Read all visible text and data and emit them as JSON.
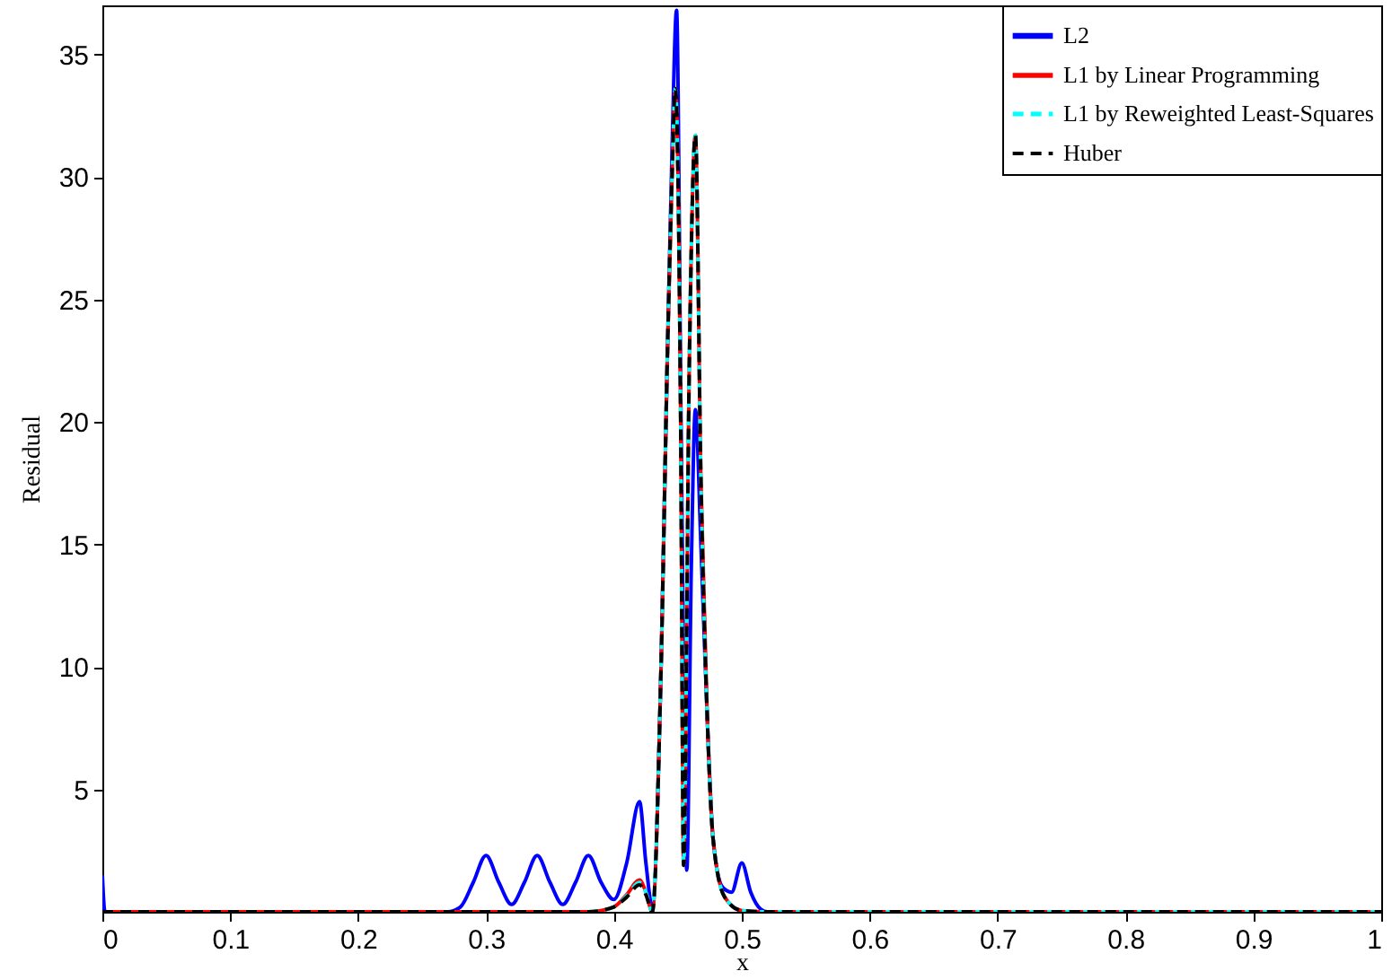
{
  "chart_data": {
    "type": "line",
    "xlabel": "x",
    "ylabel": "Residual",
    "xlim": [
      0,
      1
    ],
    "ylim": [
      0,
      37
    ],
    "xticks": [
      0,
      0.1,
      0.2,
      0.3,
      0.4,
      0.5,
      0.6,
      0.7,
      0.8,
      0.9,
      1
    ],
    "yticks": [
      5,
      10,
      15,
      20,
      25,
      30,
      35
    ],
    "grid": false,
    "legend": "top right",
    "marker": "none",
    "series": [
      {
        "name": "L2",
        "color": "#0000ff",
        "line_style": "solid",
        "x": [
          0,
          0.002,
          0.27,
          0.28,
          0.29,
          0.3,
          0.31,
          0.32,
          0.33,
          0.34,
          0.35,
          0.36,
          0.37,
          0.38,
          0.39,
          0.4,
          0.41,
          0.42,
          0.425,
          0.43,
          0.437,
          0.4417,
          0.4454,
          0.449,
          0.4525,
          0.457,
          0.4605,
          0.4637,
          0.468,
          0.473,
          0.4775,
          0.485,
          0.492,
          0.5,
          0.507,
          0.515,
          0.52,
          1
        ],
        "values": [
          1.5,
          0,
          0,
          0.2,
          1.2,
          2.3,
          1.2,
          0.3,
          1.2,
          2.3,
          1.2,
          0.3,
          1.2,
          2.3,
          1.2,
          0.5,
          2.0,
          4.5,
          2.0,
          0.2,
          10.3,
          22.5,
          31,
          36.8,
          20,
          1.7,
          14,
          20.5,
          15,
          7.9,
          3.0,
          1.0,
          0.8,
          2.0,
          0.8,
          0.1,
          0,
          0
        ]
      },
      {
        "name": "L1 by Linear Programming",
        "color": "#ff0000",
        "line_style": "solid",
        "x": [
          0,
          0.38,
          0.4,
          0.41,
          0.42,
          0.425,
          0.43,
          0.437,
          0.4417,
          0.4454,
          0.448,
          0.4522,
          0.4545,
          0.459,
          0.4637,
          0.468,
          0.473,
          0.4775,
          0.4866,
          0.5,
          0.52,
          1
        ],
        "values": [
          0,
          0,
          0.2,
          0.7,
          1.3,
          0.8,
          0,
          10.3,
          22.5,
          29.9,
          33.6,
          20,
          1.9,
          22.5,
          31.7,
          17.7,
          7.9,
          3.0,
          0.6,
          0.05,
          0,
          0
        ]
      },
      {
        "name": "L1 by Reweighted Least-Squares",
        "color": "#00ffff",
        "line_style": "dashed",
        "x": [
          0,
          0.38,
          0.4,
          0.41,
          0.42,
          0.425,
          0.43,
          0.437,
          0.4417,
          0.4454,
          0.448,
          0.4522,
          0.4545,
          0.459,
          0.4637,
          0.468,
          0.473,
          0.4775,
          0.4866,
          0.5,
          0.52,
          1
        ],
        "values": [
          0,
          0,
          0.2,
          0.65,
          1.2,
          0.8,
          0,
          10.3,
          22.5,
          29.9,
          33.6,
          20,
          1.9,
          22.5,
          31.7,
          17.7,
          7.9,
          3.0,
          0.6,
          0.05,
          0,
          0
        ]
      },
      {
        "name": "Huber",
        "color": "#000000",
        "line_style": "dashed",
        "x": [
          0,
          0.38,
          0.4,
          0.41,
          0.42,
          0.425,
          0.43,
          0.437,
          0.4417,
          0.4454,
          0.448,
          0.4522,
          0.4545,
          0.459,
          0.4637,
          0.468,
          0.473,
          0.4775,
          0.4866,
          0.5,
          0.52,
          1
        ],
        "values": [
          0,
          0,
          0.2,
          0.6,
          1.1,
          0.7,
          0,
          10.3,
          22.5,
          29.9,
          33.6,
          20,
          1.9,
          22.5,
          31.7,
          17.7,
          7.9,
          3.0,
          0.6,
          0.05,
          0,
          0
        ]
      }
    ]
  }
}
